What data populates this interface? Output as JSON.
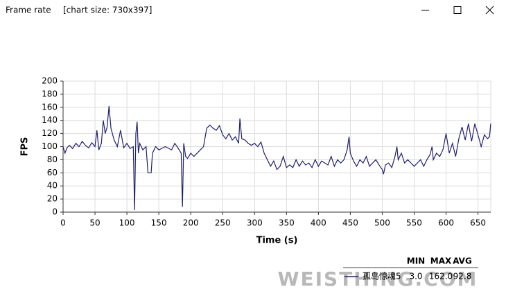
{
  "window": {
    "title": "Frame rate",
    "subtitle": "[chart size: 730x397]"
  },
  "watermark": "WEISTHING.COM",
  "chart_data": {
    "type": "line",
    "xlabel": "Time (s)",
    "ylabel": "FPS",
    "x": [
      0,
      3,
      6,
      10,
      15,
      20,
      25,
      30,
      35,
      40,
      45,
      50,
      53,
      56,
      60,
      63,
      66,
      69,
      72,
      75,
      80,
      85,
      90,
      95,
      100,
      105,
      110,
      112,
      114,
      116,
      118,
      120,
      125,
      130,
      133,
      138,
      140,
      145,
      150,
      160,
      170,
      175,
      180,
      185,
      187,
      189,
      192,
      195,
      200,
      205,
      210,
      215,
      220,
      225,
      230,
      235,
      240,
      245,
      250,
      255,
      260,
      265,
      270,
      275,
      277,
      280,
      285,
      290,
      295,
      300,
      305,
      310,
      315,
      320,
      325,
      330,
      335,
      340,
      345,
      350,
      355,
      360,
      365,
      370,
      375,
      380,
      385,
      390,
      395,
      400,
      405,
      410,
      415,
      420,
      425,
      430,
      435,
      440,
      445,
      448,
      450,
      455,
      460,
      465,
      470,
      475,
      480,
      485,
      490,
      495,
      500,
      502,
      505,
      510,
      515,
      520,
      523,
      525,
      530,
      535,
      540,
      545,
      550,
      555,
      560,
      565,
      570,
      575,
      578,
      580,
      585,
      590,
      595,
      600,
      605,
      610,
      615,
      620,
      625,
      630,
      635,
      640,
      645,
      650,
      655,
      660,
      665,
      668,
      670
    ],
    "series": [
      {
        "name": "孤岛惊魂5",
        "color": "#1f1f70",
        "values": [
          100,
          90,
          98,
          102,
          97,
          105,
          100,
          108,
          102,
          98,
          106,
          100,
          125,
          95,
          105,
          140,
          120,
          130,
          162,
          128,
          110,
          100,
          125,
          98,
          105,
          97,
          100,
          3,
          120,
          138,
          90,
          105,
          95,
          100,
          60,
          60,
          90,
          100,
          95,
          100,
          95,
          105,
          98,
          90,
          8,
          105,
          85,
          82,
          90,
          85,
          90,
          95,
          100,
          128,
          133,
          128,
          125,
          132,
          118,
          112,
          120,
          110,
          115,
          105,
          143,
          112,
          110,
          105,
          102,
          105,
          100,
          107,
          90,
          80,
          70,
          78,
          65,
          70,
          85,
          68,
          72,
          68,
          80,
          70,
          78,
          72,
          75,
          68,
          80,
          70,
          78,
          75,
          72,
          85,
          70,
          80,
          75,
          80,
          95,
          115,
          90,
          78,
          70,
          80,
          75,
          85,
          70,
          75,
          80,
          72,
          65,
          58,
          72,
          75,
          68,
          85,
          100,
          80,
          90,
          75,
          80,
          75,
          70,
          75,
          80,
          70,
          80,
          88,
          100,
          80,
          90,
          85,
          95,
          120,
          90,
          105,
          85,
          112,
          130,
          110,
          135,
          108,
          135,
          118,
          100,
          118,
          112,
          115,
          135
        ],
        "stats": [
          "3.0",
          "162.0",
          "92.8"
        ]
      }
    ],
    "stat_headers": [
      "MIN",
      "MAX",
      "AVG"
    ],
    "xlim": [
      0,
      670
    ],
    "xticks": [
      0,
      50,
      100,
      150,
      200,
      250,
      300,
      350,
      400,
      450,
      500,
      550,
      600,
      650
    ],
    "ylim": [
      0,
      200
    ],
    "yticks": [
      0,
      20,
      40,
      60,
      80,
      100,
      120,
      140,
      160,
      180,
      200
    ],
    "grid": true
  }
}
